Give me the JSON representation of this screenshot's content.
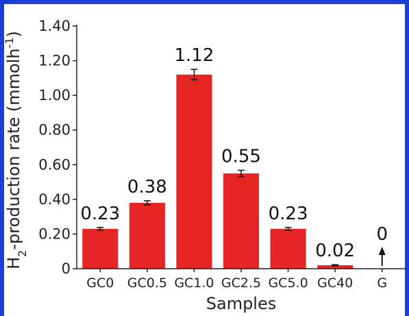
{
  "chart_data": {
    "type": "bar",
    "title": "",
    "xlabel": "Samples",
    "ylabel": {
      "text_h": "H",
      "text_sub": "2",
      "text_mid": "-production rate (mmolh",
      "text_sup": "-1",
      "text_end": ")"
    },
    "ylim": [
      0,
      1.4
    ],
    "yticks": [
      "0",
      "0.20",
      "0.40",
      "0.60",
      "0.80",
      "1.00",
      "1.20",
      "1.40"
    ],
    "categories": [
      "GC0",
      "GC0.5",
      "GC1.0",
      "GC2.5",
      "GC5.0",
      "GC40",
      "G"
    ],
    "values": [
      0.23,
      0.38,
      1.12,
      0.55,
      0.23,
      0.02,
      0
    ],
    "errors": [
      0.008,
      0.012,
      0.03,
      0.018,
      0.008,
      0.003,
      0
    ],
    "value_labels": [
      "0.23",
      "0.38",
      "1.12",
      "0.55",
      "0.23",
      "0.02",
      "0"
    ],
    "bar_color": "#e62525",
    "arrow_on": [
      "G"
    ],
    "grid": false,
    "frame_color": "#1a3fd6"
  }
}
